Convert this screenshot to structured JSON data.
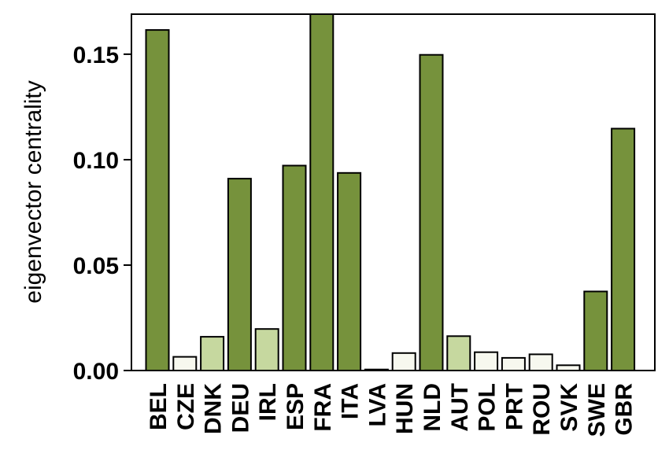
{
  "chart_data": {
    "type": "bar",
    "title": "",
    "xlabel": "",
    "ylabel": "eigenvector centrality",
    "ylim": [
      0,
      0.169
    ],
    "yticks": [
      0.0,
      0.05,
      0.1,
      0.15
    ],
    "ytick_labels": [
      "0.00",
      "0.05",
      "0.10",
      "0.15"
    ],
    "grid": false,
    "categories": [
      "BEL",
      "CZE",
      "DNK",
      "DEU",
      "IRL",
      "ESP",
      "FRA",
      "ITA",
      "LVA",
      "HUN",
      "NLD",
      "AUT",
      "POL",
      "PRT",
      "ROU",
      "SVK",
      "SWE",
      "GBR"
    ],
    "values": [
      0.1615,
      0.0065,
      0.016,
      0.091,
      0.0197,
      0.0972,
      0.169,
      0.0937,
      0.0005,
      0.0083,
      0.1497,
      0.0163,
      0.0087,
      0.006,
      0.0077,
      0.0025,
      0.0375,
      0.1147
    ],
    "colors": [
      "#76923c",
      "#f7f8ef",
      "#c6d89f",
      "#76923c",
      "#c6d89f",
      "#76923c",
      "#76923c",
      "#76923c",
      "#f7f8ef",
      "#f7f8ef",
      "#76923c",
      "#c6d89f",
      "#f7f8ef",
      "#f7f8ef",
      "#f7f8ef",
      "#f7f8ef",
      "#76923c",
      "#76923c"
    ]
  }
}
